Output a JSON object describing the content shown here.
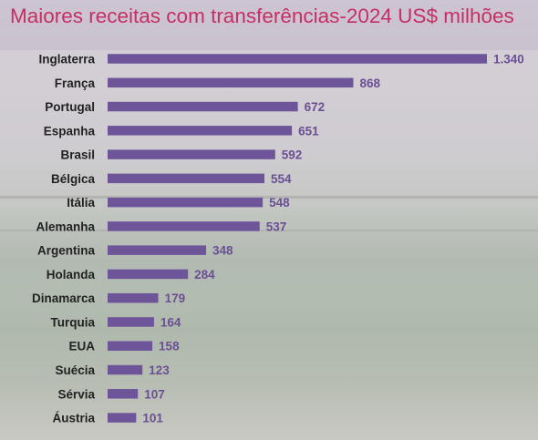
{
  "title": "Maiores receitas com transferências-2024 US$ milhões",
  "colors": {
    "bar": "#6e559a",
    "title": "#c62f66",
    "value_label": "#6b4f94"
  },
  "chart_data": {
    "type": "bar",
    "orientation": "horizontal",
    "title": "Maiores receitas com transferências-2024 US$ milhões",
    "xlabel": "",
    "ylabel": "",
    "xlim": [
      0,
      1340
    ],
    "grid": false,
    "categories": [
      "Inglaterra",
      "França",
      "Portugal",
      "Espanha",
      "Brasil",
      "Bélgica",
      "Itália",
      "Alemanha",
      "Argentina",
      "Holanda",
      "Dinamarca",
      "Turquia",
      "EUA",
      "Suécia",
      "Sérvia",
      "Áustria"
    ],
    "values": [
      1340,
      868,
      672,
      651,
      592,
      554,
      548,
      537,
      348,
      284,
      179,
      164,
      158,
      123,
      107,
      101
    ],
    "value_labels": [
      "1.340",
      "868",
      "672",
      "651",
      "592",
      "554",
      "548",
      "537",
      "348",
      "284",
      "179",
      "164",
      "158",
      "123",
      "107",
      "101"
    ]
  }
}
